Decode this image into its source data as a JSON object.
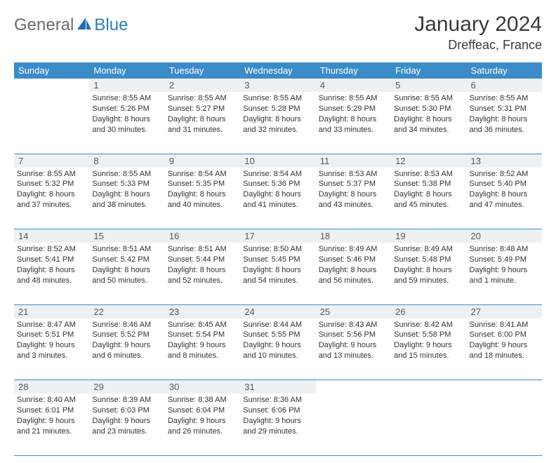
{
  "brand": {
    "text1": "General",
    "text2": "Blue"
  },
  "title": "January 2024",
  "location": "Dreffeac, France",
  "colors": {
    "header_bg": "#3b8bc9",
    "header_fg": "#ffffff",
    "daynum_bg": "#eef1f3",
    "daynum_fg": "#56595c",
    "text": "#333333",
    "rule": "#3b8bc9",
    "logo_gray": "#6d6e71",
    "logo_blue": "#2f7bbf"
  },
  "weekdays": [
    "Sunday",
    "Monday",
    "Tuesday",
    "Wednesday",
    "Thursday",
    "Friday",
    "Saturday"
  ],
  "weeks": [
    [
      null,
      {
        "d": "1",
        "sr": "8:55 AM",
        "ss": "5:26 PM",
        "dl": "8 hours and 30 minutes."
      },
      {
        "d": "2",
        "sr": "8:55 AM",
        "ss": "5:27 PM",
        "dl": "8 hours and 31 minutes."
      },
      {
        "d": "3",
        "sr": "8:55 AM",
        "ss": "5:28 PM",
        "dl": "8 hours and 32 minutes."
      },
      {
        "d": "4",
        "sr": "8:55 AM",
        "ss": "5:29 PM",
        "dl": "8 hours and 33 minutes."
      },
      {
        "d": "5",
        "sr": "8:55 AM",
        "ss": "5:30 PM",
        "dl": "8 hours and 34 minutes."
      },
      {
        "d": "6",
        "sr": "8:55 AM",
        "ss": "5:31 PM",
        "dl": "8 hours and 36 minutes."
      }
    ],
    [
      {
        "d": "7",
        "sr": "8:55 AM",
        "ss": "5:32 PM",
        "dl": "8 hours and 37 minutes."
      },
      {
        "d": "8",
        "sr": "8:55 AM",
        "ss": "5:33 PM",
        "dl": "8 hours and 38 minutes."
      },
      {
        "d": "9",
        "sr": "8:54 AM",
        "ss": "5:35 PM",
        "dl": "8 hours and 40 minutes."
      },
      {
        "d": "10",
        "sr": "8:54 AM",
        "ss": "5:36 PM",
        "dl": "8 hours and 41 minutes."
      },
      {
        "d": "11",
        "sr": "8:53 AM",
        "ss": "5:37 PM",
        "dl": "8 hours and 43 minutes."
      },
      {
        "d": "12",
        "sr": "8:53 AM",
        "ss": "5:38 PM",
        "dl": "8 hours and 45 minutes."
      },
      {
        "d": "13",
        "sr": "8:52 AM",
        "ss": "5:40 PM",
        "dl": "8 hours and 47 minutes."
      }
    ],
    [
      {
        "d": "14",
        "sr": "8:52 AM",
        "ss": "5:41 PM",
        "dl": "8 hours and 48 minutes."
      },
      {
        "d": "15",
        "sr": "8:51 AM",
        "ss": "5:42 PM",
        "dl": "8 hours and 50 minutes."
      },
      {
        "d": "16",
        "sr": "8:51 AM",
        "ss": "5:44 PM",
        "dl": "8 hours and 52 minutes."
      },
      {
        "d": "17",
        "sr": "8:50 AM",
        "ss": "5:45 PM",
        "dl": "8 hours and 54 minutes."
      },
      {
        "d": "18",
        "sr": "8:49 AM",
        "ss": "5:46 PM",
        "dl": "8 hours and 56 minutes."
      },
      {
        "d": "19",
        "sr": "8:49 AM",
        "ss": "5:48 PM",
        "dl": "8 hours and 59 minutes."
      },
      {
        "d": "20",
        "sr": "8:48 AM",
        "ss": "5:49 PM",
        "dl": "9 hours and 1 minute."
      }
    ],
    [
      {
        "d": "21",
        "sr": "8:47 AM",
        "ss": "5:51 PM",
        "dl": "9 hours and 3 minutes."
      },
      {
        "d": "22",
        "sr": "8:46 AM",
        "ss": "5:52 PM",
        "dl": "9 hours and 6 minutes."
      },
      {
        "d": "23",
        "sr": "8:45 AM",
        "ss": "5:54 PM",
        "dl": "9 hours and 8 minutes."
      },
      {
        "d": "24",
        "sr": "8:44 AM",
        "ss": "5:55 PM",
        "dl": "9 hours and 10 minutes."
      },
      {
        "d": "25",
        "sr": "8:43 AM",
        "ss": "5:56 PM",
        "dl": "9 hours and 13 minutes."
      },
      {
        "d": "26",
        "sr": "8:42 AM",
        "ss": "5:58 PM",
        "dl": "9 hours and 15 minutes."
      },
      {
        "d": "27",
        "sr": "8:41 AM",
        "ss": "6:00 PM",
        "dl": "9 hours and 18 minutes."
      }
    ],
    [
      {
        "d": "28",
        "sr": "8:40 AM",
        "ss": "6:01 PM",
        "dl": "9 hours and 21 minutes."
      },
      {
        "d": "29",
        "sr": "8:39 AM",
        "ss": "6:03 PM",
        "dl": "9 hours and 23 minutes."
      },
      {
        "d": "30",
        "sr": "8:38 AM",
        "ss": "6:04 PM",
        "dl": "9 hours and 26 minutes."
      },
      {
        "d": "31",
        "sr": "8:36 AM",
        "ss": "6:06 PM",
        "dl": "9 hours and 29 minutes."
      },
      null,
      null,
      null
    ]
  ],
  "labels": {
    "sunrise": "Sunrise:",
    "sunset": "Sunset:",
    "daylight": "Daylight:"
  }
}
